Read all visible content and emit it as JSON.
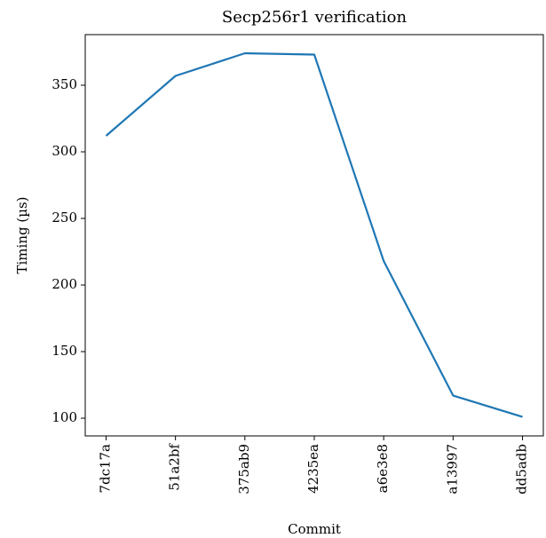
{
  "chart_data": {
    "type": "line",
    "title": "Secp256r1 verification",
    "xlabel": "Commit",
    "ylabel": "Timing (µs)",
    "categories": [
      "7dc17a",
      "51a2bf",
      "375ab9",
      "4235ea",
      "a6e3e8",
      "a13997",
      "dd5adb"
    ],
    "series": [
      {
        "name": "Timing",
        "color": "#1f77b4",
        "values": [
          312,
          357,
          374,
          373,
          218,
          117,
          101
        ]
      }
    ],
    "ylim": [
      86.7,
      388
    ],
    "yticks": [
      100,
      150,
      200,
      250,
      300,
      350
    ]
  }
}
